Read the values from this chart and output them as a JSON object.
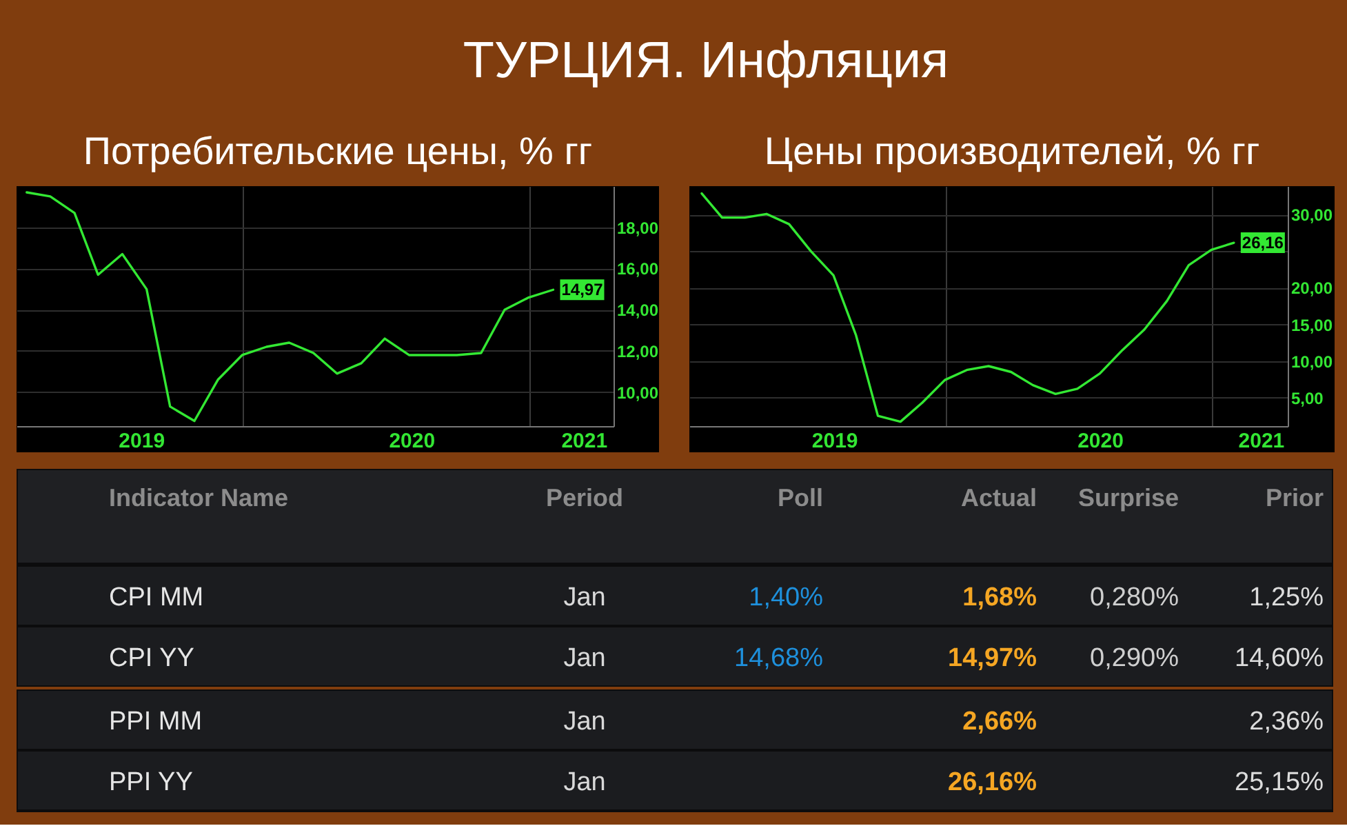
{
  "chart_data": [
    {
      "type": "other",
      "title": "ТУРЦИЯ. Инфляция"
    },
    {
      "type": "line",
      "title": "Потребительские цены, % гг",
      "color": "#33e833",
      "x": [
        "2019-03-31",
        "2019-04-30",
        "2019-05-31",
        "2019-06-30",
        "2019-07-31",
        "2019-08-31",
        "2019-09-30",
        "2019-10-31",
        "2019-11-30",
        "2019-12-31",
        "2020-01-31",
        "2020-02-29",
        "2020-03-31",
        "2020-04-30",
        "2020-05-31",
        "2020-06-30",
        "2020-07-31",
        "2020-08-31",
        "2020-09-30",
        "2020-10-31",
        "2020-11-30",
        "2020-12-31",
        "2021-01-31"
      ],
      "values": [
        19.7,
        19.5,
        18.7,
        15.7,
        16.7,
        15.0,
        9.3,
        8.6,
        10.6,
        11.8,
        12.2,
        12.4,
        11.9,
        10.9,
        11.4,
        12.6,
        11.8,
        11.8,
        11.8,
        11.9,
        14.0,
        14.6,
        14.97
      ],
      "value_labels": [
        null,
        null,
        null,
        null,
        null,
        null,
        null,
        null,
        null,
        null,
        null,
        null,
        null,
        null,
        null,
        null,
        null,
        null,
        null,
        null,
        null,
        null,
        "14,97"
      ],
      "xlim": [
        "2019-03-18",
        "2021-04-18"
      ],
      "ylim": [
        8.35,
        20.0
      ],
      "xticks": [
        {
          "value": "2019-08-24",
          "label": "2019"
        },
        {
          "value": "2020-01-01",
          "label": null
        },
        {
          "value": "2020-08-03",
          "label": "2020"
        },
        {
          "value": "2021-01-01",
          "label": null
        },
        {
          "value": "2021-03-11",
          "label": "2021"
        }
      ],
      "yticks": [
        {
          "value": 10,
          "label": "10,00"
        },
        {
          "value": 12,
          "label": "12,00"
        },
        {
          "value": 14,
          "label": "14,00"
        },
        {
          "value": 16,
          "label": "16,00"
        },
        {
          "value": 18,
          "label": "18,00"
        }
      ],
      "grid": true
    },
    {
      "type": "line",
      "title": "Цены производителей, % гг",
      "color": "#33e833",
      "x": [
        "2019-01-31",
        "2019-02-28",
        "2019-03-31",
        "2019-04-30",
        "2019-05-31",
        "2019-06-30",
        "2019-07-31",
        "2019-08-31",
        "2019-09-30",
        "2019-10-31",
        "2019-11-30",
        "2019-12-31",
        "2020-01-31",
        "2020-02-29",
        "2020-03-31",
        "2020-04-30",
        "2020-05-31",
        "2020-06-30",
        "2020-07-31",
        "2020-08-31",
        "2020-09-30",
        "2020-10-31",
        "2020-11-30",
        "2020-12-31",
        "2021-01-31"
      ],
      "values": [
        32.9,
        29.6,
        29.6,
        30.1,
        28.7,
        25.0,
        21.7,
        13.5,
        2.5,
        1.7,
        4.3,
        7.4,
        8.8,
        9.3,
        8.5,
        6.7,
        5.5,
        6.2,
        8.3,
        11.5,
        14.3,
        18.2,
        23.1,
        25.2,
        26.16
      ],
      "value_labels": [
        null,
        null,
        null,
        null,
        null,
        null,
        null,
        null,
        null,
        null,
        null,
        null,
        null,
        null,
        null,
        null,
        null,
        null,
        null,
        null,
        null,
        null,
        null,
        null,
        "26,16"
      ],
      "xlim": [
        "2019-01-14",
        "2021-04-15"
      ],
      "ylim": [
        1.1,
        33.9
      ],
      "xticks": [
        {
          "value": "2019-08-01",
          "label": "2019"
        },
        {
          "value": "2020-01-01",
          "label": null
        },
        {
          "value": "2020-07-31",
          "label": "2020"
        },
        {
          "value": "2021-01-01",
          "label": null
        },
        {
          "value": "2021-03-09",
          "label": "2021"
        }
      ],
      "yticks": [
        {
          "value": 5,
          "label": "5,00"
        },
        {
          "value": 10,
          "label": "10,00"
        },
        {
          "value": 15,
          "label": "15,00"
        },
        {
          "value": 20,
          "label": "20,00"
        },
        {
          "value": 25,
          "label": null
        },
        {
          "value": 30,
          "label": "30,00"
        }
      ],
      "grid": true
    },
    {
      "type": "other",
      "categories": [
        "Indicator Name",
        "Period",
        "Poll",
        "Actual",
        "Surprise",
        "Prior"
      ],
      "cell_labels": [
        [
          "CPI MM",
          "Jan",
          "1,40%",
          "1,68%",
          "0,280%",
          "1,25%"
        ],
        [
          "CPI YY",
          "Jan",
          "14,68%",
          "14,97%",
          "0,290%",
          "14,60%"
        ],
        [
          "PPI MM",
          "Jan",
          null,
          "2,66%",
          null,
          "2,36%"
        ],
        [
          "PPI YY",
          "Jan",
          null,
          "26,16%",
          null,
          "25,15%"
        ]
      ]
    }
  ]
}
